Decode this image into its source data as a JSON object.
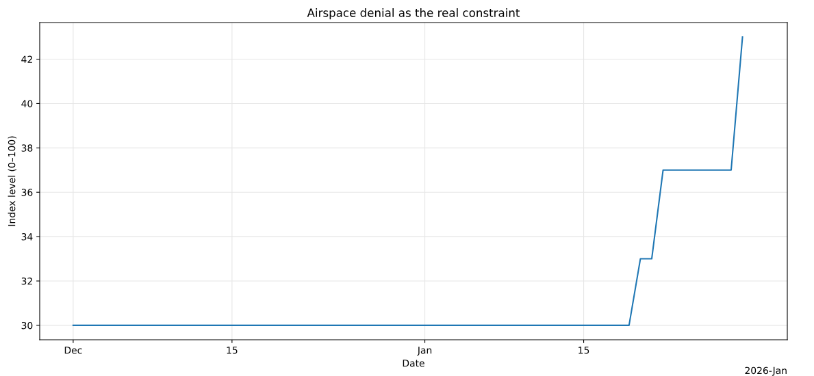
{
  "chart_data": {
    "type": "line",
    "title": "Airspace denial as the real constraint",
    "xlabel": "Date",
    "ylabel": "Index level (0–100)",
    "x": [
      "2025-12-01",
      "2026-01-19",
      "2026-01-20",
      "2026-01-21",
      "2026-01-22",
      "2026-01-28",
      "2026-01-29"
    ],
    "series": [
      {
        "color": "#1f77b4",
        "values": [
          30,
          30,
          33,
          33,
          37,
          37,
          43
        ]
      }
    ],
    "xlim": [
      "2025-11-28T01:12",
      "2026-02-01T22:48"
    ],
    "xticks": [
      {
        "value": "2025-12-01",
        "label": "Dec"
      },
      {
        "value": "2025-12-15",
        "label": "15"
      },
      {
        "value": "2026-01-01",
        "label": "Jan"
      },
      {
        "value": "2026-01-15",
        "label": "15"
      }
    ],
    "ylim": [
      29.35,
      43.65
    ],
    "yticks": [
      30,
      32,
      34,
      36,
      38,
      40,
      42
    ],
    "annotations": [
      "2026-Jan"
    ],
    "grid": true,
    "legend": false,
    "marker": "none",
    "line_style": "solid"
  }
}
